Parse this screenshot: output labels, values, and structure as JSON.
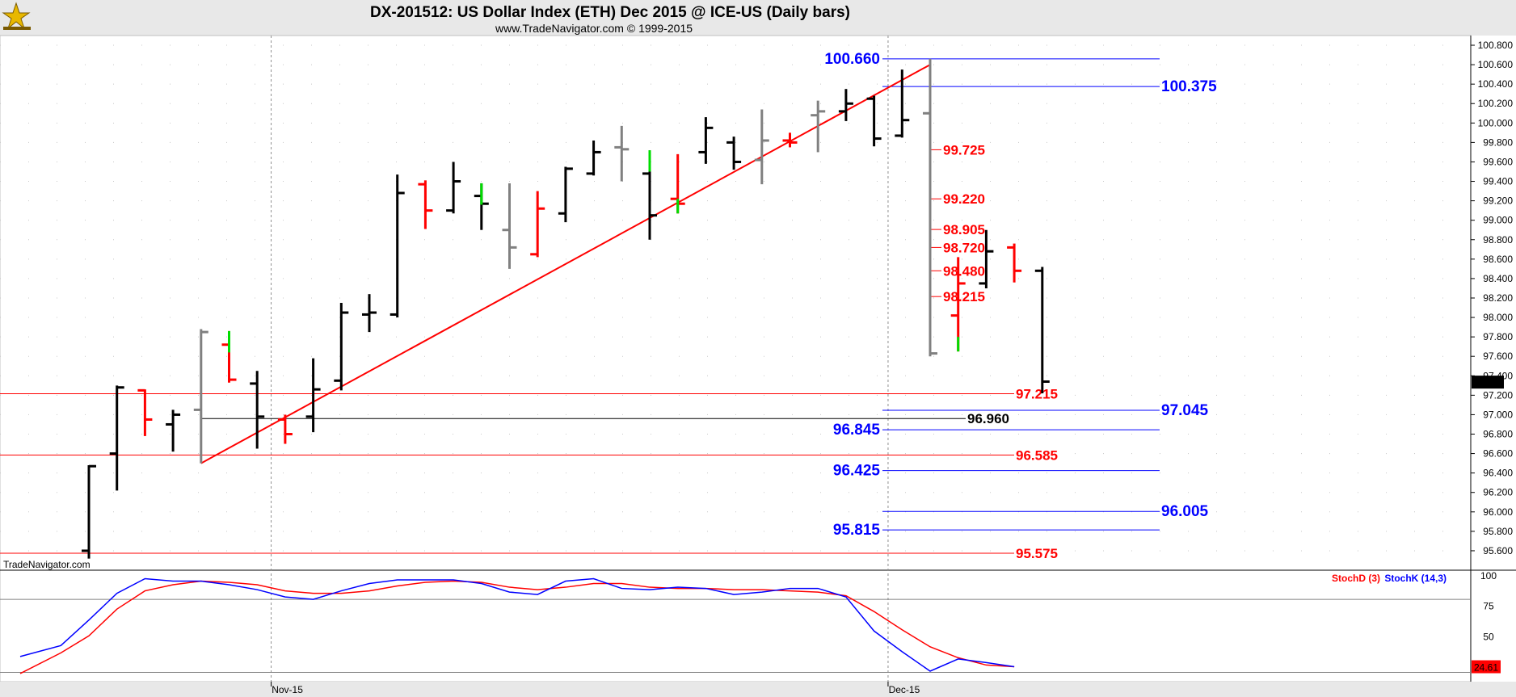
{
  "header": {
    "title": "DX-201512:  US Dollar Index (ETH) Dec 2015 @ ICE-US  (Daily bars)",
    "subtitle": "www.TradeNavigator.com © 1999-2015",
    "watermark": "TradeNavigator.com"
  },
  "chart_data": [
    {
      "type": "ohlc-bar",
      "ylim": [
        95.45,
        100.85
      ],
      "yticks": [
        "100.800",
        "100.600",
        "100.400",
        "100.200",
        "100.000",
        "99.800",
        "99.600",
        "99.400",
        "99.200",
        "99.000",
        "98.800",
        "98.600",
        "98.400",
        "98.200",
        "98.000",
        "97.800",
        "97.600",
        "97.400",
        "97.200",
        "97.000",
        "96.800",
        "96.600",
        "96.400",
        "96.200",
        "96.000",
        "95.800",
        "95.600"
      ],
      "xlabels": [
        {
          "label": "Nov-15",
          "bar": 6.5
        },
        {
          "label": "Dec-15",
          "bar": 28.5
        }
      ],
      "last_price": "97.335",
      "colors": {
        "black": "#000000",
        "gray": "#808080",
        "red": "#ff0000",
        "green": "#00dd00"
      },
      "bars": [
        {
          "o": 95.6,
          "h": 96.48,
          "l": 95.52,
          "c": 96.47,
          "color": "black"
        },
        {
          "o": 96.6,
          "h": 97.3,
          "l": 96.22,
          "c": 97.28,
          "color": "black"
        },
        {
          "o": 97.25,
          "h": 97.26,
          "l": 96.78,
          "c": 96.95,
          "color": "red"
        },
        {
          "o": 96.9,
          "h": 97.05,
          "l": 96.62,
          "c": 97.0,
          "color": "black"
        },
        {
          "o": 97.05,
          "h": 97.88,
          "l": 96.5,
          "c": 97.85,
          "color": "gray"
        },
        {
          "o": 97.72,
          "h": 97.86,
          "l": 97.33,
          "c": 97.36,
          "color": "red",
          "lowtick": false,
          "hightick": "green"
        },
        {
          "o": 97.32,
          "h": 97.45,
          "l": 96.65,
          "c": 96.98,
          "color": "black"
        },
        {
          "o": 96.95,
          "h": 97.0,
          "l": 96.7,
          "c": 96.8,
          "color": "red"
        },
        {
          "o": 96.98,
          "h": 97.58,
          "l": 96.82,
          "c": 97.26,
          "color": "black"
        },
        {
          "o": 97.35,
          "h": 98.15,
          "l": 97.25,
          "c": 98.05,
          "color": "black"
        },
        {
          "o": 98.03,
          "h": 98.24,
          "l": 97.85,
          "c": 98.05,
          "color": "black"
        },
        {
          "o": 98.03,
          "h": 99.47,
          "l": 98.0,
          "c": 99.28,
          "color": "black"
        },
        {
          "o": 99.37,
          "h": 99.41,
          "l": 98.91,
          "c": 99.1,
          "color": "red"
        },
        {
          "o": 99.1,
          "h": 99.6,
          "l": 99.07,
          "c": 99.4,
          "color": "black"
        },
        {
          "o": 99.25,
          "h": 99.38,
          "l": 98.9,
          "c": 99.17,
          "color": "black",
          "hightick": "green"
        },
        {
          "o": 98.9,
          "h": 99.38,
          "l": 98.5,
          "c": 98.72,
          "color": "gray"
        },
        {
          "o": 98.65,
          "h": 99.3,
          "l": 98.62,
          "c": 99.12,
          "color": "red"
        },
        {
          "o": 99.07,
          "h": 99.55,
          "l": 98.98,
          "c": 99.53,
          "color": "black"
        },
        {
          "o": 99.48,
          "h": 99.82,
          "l": 99.46,
          "c": 99.7,
          "color": "black"
        },
        {
          "o": 99.75,
          "h": 99.97,
          "l": 99.4,
          "c": 99.73,
          "color": "gray"
        },
        {
          "o": 99.48,
          "h": 99.72,
          "l": 98.8,
          "c": 99.05,
          "color": "black",
          "hightick": "green"
        },
        {
          "o": 99.22,
          "h": 99.68,
          "l": 99.07,
          "c": 99.17,
          "color": "red",
          "lowtick": "green"
        },
        {
          "o": 99.7,
          "h": 100.06,
          "l": 99.58,
          "c": 99.95,
          "color": "black"
        },
        {
          "o": 99.8,
          "h": 99.86,
          "l": 99.52,
          "c": 99.6,
          "color": "black"
        },
        {
          "o": 99.62,
          "h": 100.14,
          "l": 99.37,
          "c": 99.82,
          "color": "gray"
        },
        {
          "o": 99.82,
          "h": 99.9,
          "l": 99.75,
          "c": 99.8,
          "color": "red"
        },
        {
          "o": 100.08,
          "h": 100.23,
          "l": 99.7,
          "c": 100.12,
          "color": "gray"
        },
        {
          "o": 100.12,
          "h": 100.35,
          "l": 100.02,
          "c": 100.2,
          "color": "black"
        },
        {
          "o": 100.25,
          "h": 100.28,
          "l": 99.76,
          "c": 99.84,
          "color": "black"
        },
        {
          "o": 99.87,
          "h": 100.55,
          "l": 99.85,
          "c": 100.03,
          "color": "black"
        },
        {
          "o": 100.1,
          "h": 100.66,
          "l": 97.6,
          "c": 97.63,
          "color": "gray"
        },
        {
          "o": 98.02,
          "h": 98.62,
          "l": 97.65,
          "c": 98.35,
          "color": "red",
          "lowtick": "green"
        },
        {
          "o": 98.35,
          "h": 98.9,
          "l": 98.3,
          "c": 98.68,
          "color": "black"
        },
        {
          "o": 98.72,
          "h": 98.76,
          "l": 98.36,
          "c": 98.48,
          "color": "red"
        },
        {
          "o": 98.48,
          "h": 98.52,
          "l": 97.22,
          "c": 97.34,
          "color": "black"
        }
      ],
      "trendline": {
        "from_bar": 4,
        "from_y": 96.5,
        "to_bar": 30,
        "to_y": 100.6,
        "color": "#ff0000"
      },
      "levels": [
        {
          "value": 100.66,
          "label": "100.660",
          "color": "#0000ff",
          "from_bar": 28.3,
          "to_x": 1435,
          "label_side": "left"
        },
        {
          "value": 100.375,
          "label": "100.375",
          "color": "#0000ff",
          "from_bar": 28.3,
          "to_x": 1435,
          "label_side": "right"
        },
        {
          "value": 99.725,
          "label": "99.725",
          "color": "#ff0000",
          "from_bar": 30,
          "to_x": 1165,
          "label_side": "right"
        },
        {
          "value": 99.22,
          "label": "99.220",
          "color": "#ff0000",
          "from_bar": 30,
          "to_x": 1165,
          "label_side": "right"
        },
        {
          "value": 98.905,
          "label": "98.905",
          "color": "#ff0000",
          "from_bar": 30,
          "to_x": 1165,
          "label_side": "right"
        },
        {
          "value": 98.72,
          "label": "98.720",
          "color": "#ff0000",
          "from_bar": 30,
          "to_x": 1165,
          "label_side": "right"
        },
        {
          "value": 98.48,
          "label": "98.480",
          "color": "#ff0000",
          "from_bar": 30,
          "to_x": 1165,
          "label_side": "right"
        },
        {
          "value": 98.215,
          "label": "98.215",
          "color": "#ff0000",
          "from_bar": 30,
          "to_x": 1165,
          "label_side": "right"
        },
        {
          "value": 97.215,
          "label": "97.215",
          "color": "#ff0000",
          "from_x": 0,
          "to_x": 1255,
          "label_side": "right"
        },
        {
          "value": 97.045,
          "label": "97.045",
          "color": "#0000ff",
          "from_bar": 28.3,
          "to_x": 1435,
          "label_side": "right"
        },
        {
          "value": 96.96,
          "label": "96.960",
          "color": "#000000",
          "from_bar": 4,
          "to_x": 1195,
          "label_side": "right"
        },
        {
          "value": 96.845,
          "label": "96.845",
          "color": "#0000ff",
          "from_bar": 28.3,
          "to_x": 1435,
          "label_side": "left"
        },
        {
          "value": 96.585,
          "label": "96.585",
          "color": "#ff0000",
          "from_x": 0,
          "to_x": 1255,
          "label_side": "right"
        },
        {
          "value": 96.425,
          "label": "96.425",
          "color": "#0000ff",
          "from_bar": 28.3,
          "to_x": 1435,
          "label_side": "left"
        },
        {
          "value": 96.005,
          "label": "96.005",
          "color": "#0000ff",
          "from_bar": 28.3,
          "to_x": 1435,
          "label_side": "right"
        },
        {
          "value": 95.815,
          "label": "95.815",
          "color": "#0000ff",
          "from_bar": 28.3,
          "to_x": 1435,
          "label_side": "left"
        },
        {
          "value": 95.575,
          "label": "95.575",
          "color": "#ff0000",
          "from_x": 0,
          "to_x": 1255,
          "label_side": "right"
        }
      ]
    },
    {
      "type": "line",
      "ylim": [
        15,
        100
      ],
      "yticks": [
        "100",
        "75",
        "50"
      ],
      "reference_lines": [
        80,
        20
      ],
      "last_value": "24.61",
      "legend": [
        {
          "name": "StochD (3)",
          "color": "#ff0000"
        },
        {
          "name": "StochK (14,3)",
          "color": "#0000ff"
        }
      ],
      "series": [
        {
          "name": "StochD (3)",
          "color": "#ff0000",
          "values": [
            [
              0,
              19
            ],
            [
              2,
              36
            ],
            [
              3,
              50
            ],
            [
              4,
              72
            ],
            [
              5,
              87
            ],
            [
              6,
              92
            ],
            [
              7,
              95
            ],
            [
              8,
              94
            ],
            [
              9,
              92
            ],
            [
              10,
              87
            ],
            [
              11,
              85
            ],
            [
              12,
              85
            ],
            [
              13,
              87
            ],
            [
              14,
              91
            ],
            [
              15,
              94
            ],
            [
              16,
              95
            ],
            [
              17,
              94
            ],
            [
              18,
              90
            ],
            [
              19,
              88
            ],
            [
              20,
              90
            ],
            [
              21,
              93
            ],
            [
              22,
              93
            ],
            [
              23,
              90
            ],
            [
              24,
              89
            ],
            [
              25,
              89
            ],
            [
              26,
              88
            ],
            [
              27,
              88
            ],
            [
              28,
              87
            ],
            [
              29,
              86
            ],
            [
              30,
              83
            ],
            [
              31,
              70
            ],
            [
              32,
              55
            ],
            [
              33,
              41
            ],
            [
              34,
              32
            ],
            [
              35,
              26
            ],
            [
              36,
              24.61
            ]
          ]
        },
        {
          "name": "StochK (14,3)",
          "color": "#0000ff",
          "values": [
            [
              0,
              33
            ],
            [
              2,
              42
            ],
            [
              3,
              63
            ],
            [
              4,
              85
            ],
            [
              5,
              97
            ],
            [
              6,
              95
            ],
            [
              7,
              95
            ],
            [
              8,
              92
            ],
            [
              9,
              88
            ],
            [
              10,
              82
            ],
            [
              11,
              80
            ],
            [
              12,
              87
            ],
            [
              13,
              93
            ],
            [
              14,
              96
            ],
            [
              15,
              96
            ],
            [
              16,
              96
            ],
            [
              17,
              93
            ],
            [
              18,
              86
            ],
            [
              19,
              84
            ],
            [
              20,
              95
            ],
            [
              21,
              97
            ],
            [
              22,
              89
            ],
            [
              23,
              88
            ],
            [
              24,
              90
            ],
            [
              25,
              89
            ],
            [
              26,
              84
            ],
            [
              27,
              86
            ],
            [
              28,
              89
            ],
            [
              29,
              89
            ],
            [
              30,
              82
            ],
            [
              31,
              54
            ],
            [
              32,
              37
            ],
            [
              33,
              21
            ],
            [
              34,
              31
            ],
            [
              35,
              28
            ],
            [
              36,
              24.61
            ]
          ]
        }
      ]
    }
  ]
}
